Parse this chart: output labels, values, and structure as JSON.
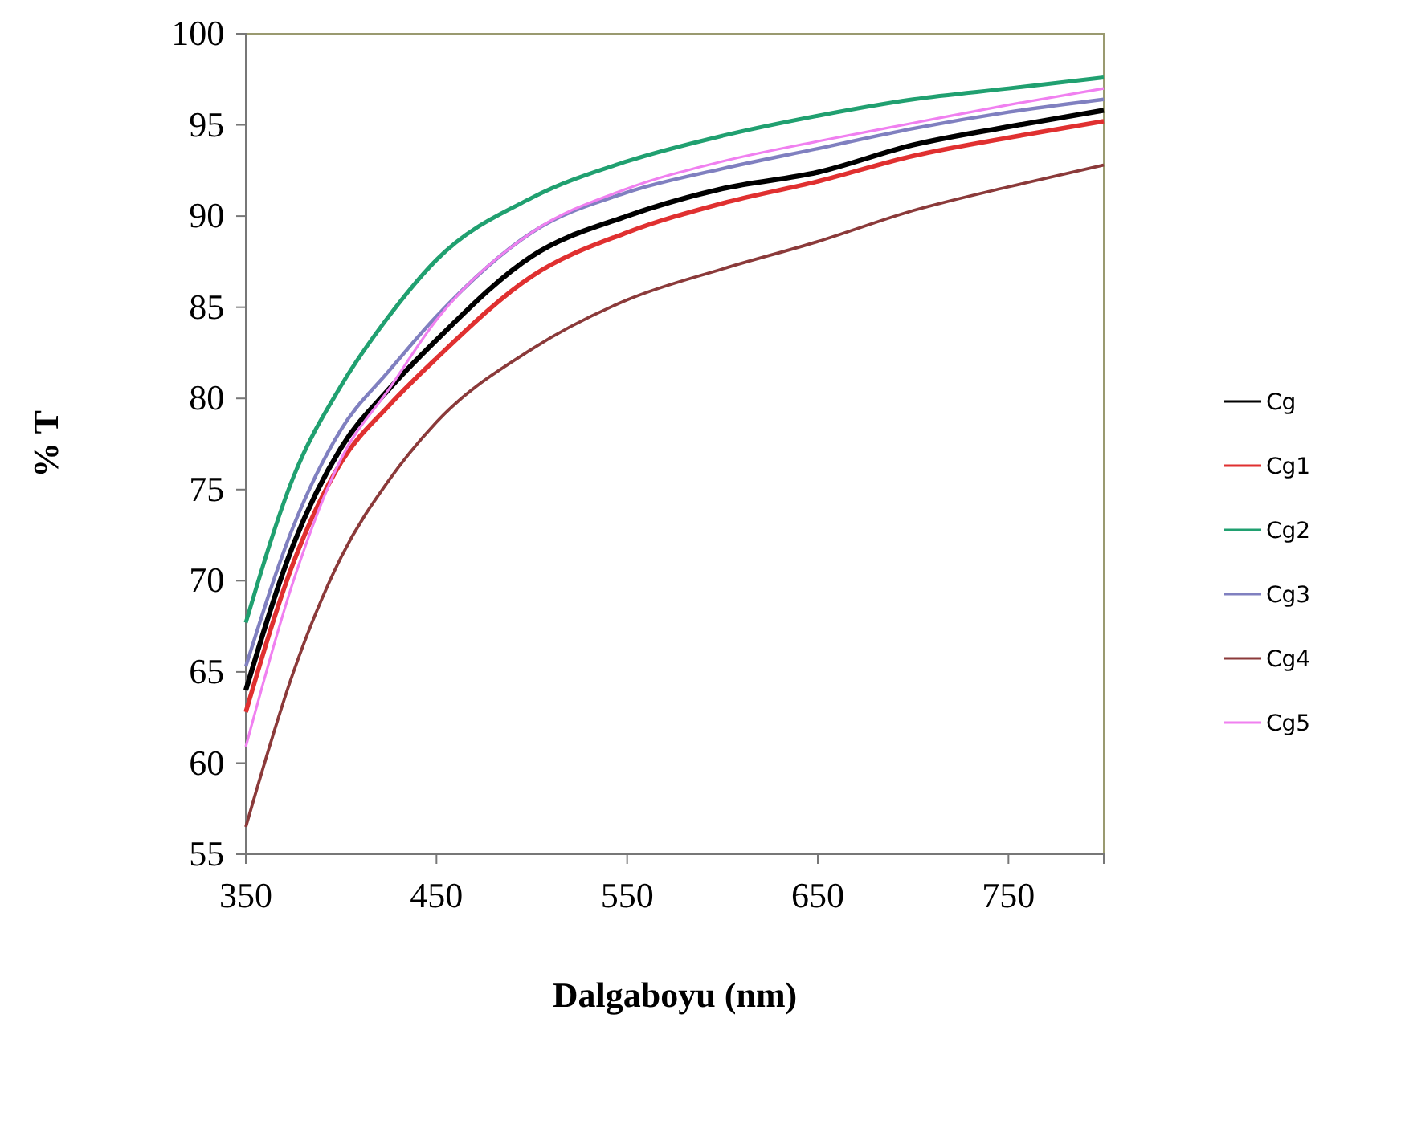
{
  "chart_data": {
    "type": "line",
    "xlabel": "Dalgaboyu (nm)",
    "ylabel": "% T",
    "x": [
      350,
      375,
      400,
      425,
      450,
      500,
      550,
      600,
      650,
      700,
      750,
      800
    ],
    "xlim": [
      350,
      800
    ],
    "xticks": [
      350,
      450,
      550,
      650,
      750
    ],
    "ylim": [
      55,
      100
    ],
    "yticks": [
      55,
      60,
      65,
      70,
      75,
      80,
      85,
      90,
      95,
      100
    ],
    "grid": false,
    "legend": "right",
    "marker": "none",
    "line_style": "solid",
    "series": [
      {
        "name": "Cg",
        "color": "#000000",
        "values": [
          64,
          72,
          77.3,
          80.5,
          83.2,
          87.8,
          90,
          91.5,
          92.4,
          93.9,
          94.9,
          95.8
        ]
      },
      {
        "name": "Cg1",
        "color": "#e03030",
        "values": [
          62.8,
          71,
          76.5,
          79.6,
          82.2,
          86.7,
          89.1,
          90.7,
          91.9,
          93.3,
          94.3,
          95.2
        ]
      },
      {
        "name": "Cg2",
        "color": "#20a070",
        "values": [
          67.7,
          75.7,
          80.7,
          84.5,
          87.6,
          91,
          93,
          94.4,
          95.5,
          96.4,
          97,
          97.6
        ]
      },
      {
        "name": "Cg3",
        "color": "#8080c0",
        "values": [
          65.3,
          73,
          78.3,
          81.5,
          84.5,
          89.1,
          91.3,
          92.6,
          93.7,
          94.8,
          95.7,
          96.4
        ]
      },
      {
        "name": "Cg4",
        "color": "#8b3a3a",
        "values": [
          56.5,
          65,
          71.3,
          75.5,
          78.7,
          82.7,
          85.4,
          87.1,
          88.6,
          90.3,
          91.6,
          92.8
        ]
      },
      {
        "name": "Cg5",
        "color": "#f080f0",
        "values": [
          60.9,
          70,
          76.7,
          80.5,
          84.3,
          89.1,
          91.5,
          93,
          94.1,
          95.1,
          96.1,
          97
        ]
      }
    ]
  }
}
